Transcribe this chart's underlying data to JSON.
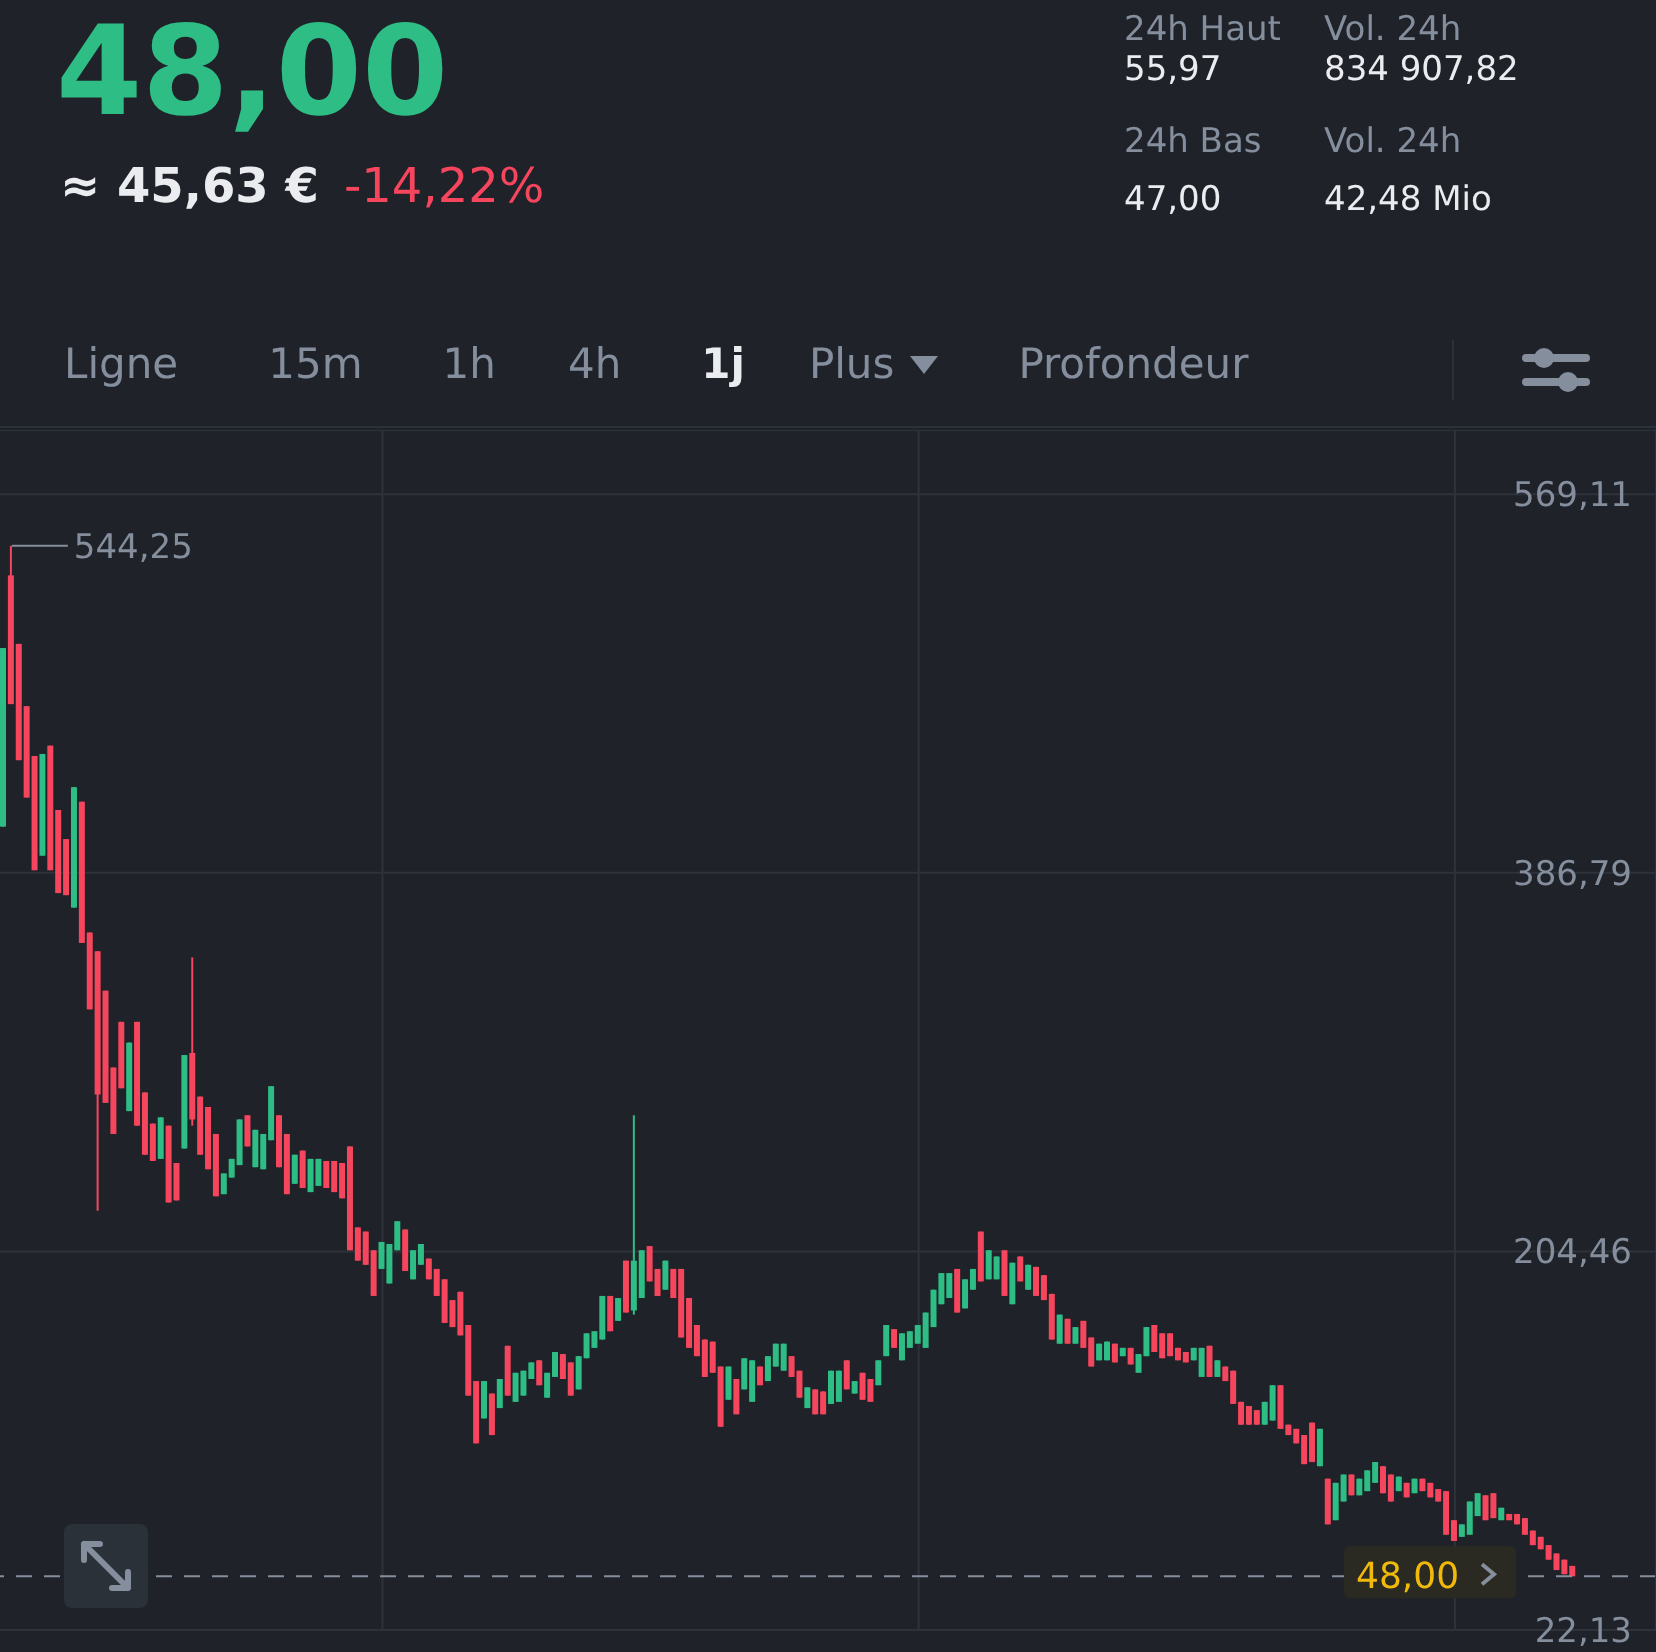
{
  "chart_data": {
    "type": "candlestick",
    "title": "48,00",
    "annotations": [
      "≈ 45,63 €",
      "-14,22%",
      "24h Haut",
      "55,97",
      "Vol. 24h",
      "834 907,82",
      "24h Bas",
      "47,00",
      "Vol. 24h",
      "42,48 Mio",
      "Ligne",
      "15m",
      "1h",
      "4h",
      "1j",
      "Plus",
      "Profondeur",
      "544,25"
    ],
    "categories": [
      null,
      null,
      null,
      null,
      null,
      null,
      null,
      null,
      null,
      null,
      null,
      null,
      null,
      null,
      null,
      null,
      null,
      null,
      null,
      null,
      null,
      null,
      null,
      null,
      null,
      null,
      null,
      null,
      null,
      null,
      null,
      null,
      null,
      null,
      null,
      null,
      null,
      null,
      null,
      null,
      null,
      null,
      null,
      null,
      null,
      null,
      null,
      null,
      null,
      null,
      null,
      null,
      null,
      null,
      null,
      null,
      null,
      null,
      null,
      null,
      null,
      null,
      null,
      null,
      null,
      null,
      null,
      null,
      null,
      null,
      null,
      null,
      null,
      null,
      null,
      null,
      null,
      null,
      null,
      null,
      null,
      null,
      null,
      null,
      null,
      null,
      null,
      null,
      null,
      null,
      null,
      null,
      null,
      null,
      null,
      null,
      null,
      null,
      null,
      null,
      null,
      null,
      null,
      null,
      null,
      null,
      null,
      null,
      null,
      null,
      null,
      null,
      null,
      null,
      null,
      null,
      null,
      null,
      null,
      null,
      null,
      null,
      null,
      null,
      null,
      null,
      null,
      null,
      null,
      null,
      null,
      null,
      null,
      null,
      null,
      null,
      null,
      null,
      null,
      null,
      null,
      null,
      null,
      null,
      null,
      null,
      null,
      null,
      null,
      null,
      null,
      null,
      null,
      null,
      null,
      null,
      null,
      null,
      null,
      null,
      null,
      null,
      null,
      null,
      null,
      null,
      null,
      null,
      null,
      null,
      null,
      null,
      null,
      null,
      null,
      null,
      null,
      null,
      null,
      null,
      null,
      null,
      null,
      null,
      null,
      null,
      null,
      null,
      null,
      null,
      null,
      null,
      null,
      null,
      null,
      null,
      null,
      null,
      null,
      null
    ],
    "ohlc": [
      [
        409,
        495,
        409,
        495
      ],
      [
        530,
        544.25,
        468,
        468
      ],
      [
        497,
        497,
        441,
        441
      ],
      [
        467,
        467,
        423,
        423
      ],
      [
        443,
        443,
        388,
        388
      ],
      [
        395,
        444,
        395,
        444
      ],
      [
        448,
        448,
        388,
        388
      ],
      [
        417,
        417,
        377,
        377
      ],
      [
        403,
        403,
        376,
        376
      ],
      [
        370,
        428,
        370,
        428
      ],
      [
        421,
        421,
        353,
        353
      ],
      [
        358,
        358,
        321,
        321
      ],
      [
        349,
        349,
        224,
        280
      ],
      [
        330,
        330,
        276,
        276
      ],
      [
        293,
        293,
        261,
        261
      ],
      [
        315,
        315,
        283,
        283
      ],
      [
        272,
        305,
        272,
        305
      ],
      [
        315,
        315,
        265,
        265
      ],
      [
        281,
        281,
        251,
        251
      ],
      [
        266,
        266,
        248,
        248
      ],
      [
        249,
        269,
        249,
        269
      ],
      [
        265,
        265,
        228,
        228
      ],
      [
        247,
        247,
        229,
        229
      ],
      [
        254,
        299,
        254,
        299
      ],
      [
        300,
        346,
        265,
        268
      ],
      [
        279,
        279,
        251,
        251
      ],
      [
        274,
        274,
        244,
        244
      ],
      [
        261,
        261,
        231,
        231
      ],
      [
        232,
        242,
        232,
        242
      ],
      [
        240,
        249,
        240,
        249
      ],
      [
        246,
        268,
        246,
        268
      ],
      [
        270,
        270,
        255,
        255
      ],
      [
        245,
        263,
        245,
        263
      ],
      [
        244,
        261,
        244,
        261
      ],
      [
        258,
        284,
        258,
        284
      ],
      [
        270,
        270,
        245,
        245
      ],
      [
        261,
        261,
        232,
        232
      ],
      [
        237,
        251,
        237,
        251
      ],
      [
        253,
        253,
        235,
        235
      ],
      [
        233,
        249,
        233,
        249
      ],
      [
        236,
        249,
        236,
        249
      ],
      [
        248,
        248,
        235,
        235
      ],
      [
        248,
        248,
        233,
        233
      ],
      [
        247,
        247,
        230,
        230
      ],
      [
        255,
        255,
        205,
        205
      ],
      [
        216,
        216,
        200,
        200
      ],
      [
        214,
        214,
        198,
        198
      ],
      [
        205,
        205,
        183,
        183
      ],
      [
        196,
        209,
        196,
        209
      ],
      [
        189,
        208,
        189,
        208
      ],
      [
        205,
        219,
        205,
        219
      ],
      [
        215,
        215,
        195,
        195
      ],
      [
        191,
        205,
        191,
        205
      ],
      [
        198,
        208,
        198,
        208
      ],
      [
        201,
        201,
        191,
        191
      ],
      [
        196,
        196,
        183,
        183
      ],
      [
        191,
        191,
        170,
        170
      ],
      [
        181,
        181,
        168,
        168
      ],
      [
        185,
        185,
        164,
        164
      ],
      [
        169,
        169,
        135,
        135
      ],
      [
        142,
        142,
        112,
        112
      ],
      [
        124,
        142,
        124,
        142
      ],
      [
        136,
        136,
        116,
        116
      ],
      [
        129,
        143,
        129,
        143
      ],
      [
        159,
        159,
        135,
        135
      ],
      [
        132,
        146,
        132,
        146
      ],
      [
        135,
        147,
        135,
        147
      ],
      [
        143,
        151,
        143,
        151
      ],
      [
        152,
        152,
        140,
        140
      ],
      [
        134,
        146,
        134,
        146
      ],
      [
        144,
        156,
        144,
        156
      ],
      [
        155,
        155,
        143,
        143
      ],
      [
        151,
        151,
        135,
        135
      ],
      [
        138,
        154,
        138,
        154
      ],
      [
        153,
        165,
        153,
        165
      ],
      [
        158,
        166,
        158,
        166
      ],
      [
        162,
        183,
        162,
        183
      ],
      [
        183,
        183,
        166,
        166
      ],
      [
        171,
        182,
        171,
        182
      ],
      [
        200,
        200,
        175,
        175
      ],
      [
        176,
        270,
        174,
        200
      ],
      [
        182,
        205,
        182,
        205
      ],
      [
        207,
        207,
        190,
        190
      ],
      [
        196,
        196,
        183,
        183
      ],
      [
        186,
        200,
        186,
        200
      ],
      [
        196,
        196,
        182,
        182
      ],
      [
        196,
        196,
        163,
        163
      ],
      [
        182,
        182,
        158,
        158
      ],
      [
        169,
        169,
        154,
        154
      ],
      [
        162,
        162,
        144,
        144
      ],
      [
        161,
        161,
        146,
        146
      ],
      [
        149,
        149,
        120,
        120
      ],
      [
        133,
        149,
        133,
        149
      ],
      [
        143,
        143,
        126,
        126
      ],
      [
        138,
        153,
        138,
        153
      ],
      [
        132,
        152,
        132,
        152
      ],
      [
        149,
        149,
        140,
        140
      ],
      [
        142,
        154,
        142,
        154
      ],
      [
        149,
        160,
        149,
        160
      ],
      [
        147,
        160,
        147,
        160
      ],
      [
        154,
        154,
        144,
        144
      ],
      [
        147,
        147,
        134,
        134
      ],
      [
        129,
        139,
        129,
        139
      ],
      [
        138,
        138,
        126,
        126
      ],
      [
        137,
        137,
        126,
        126
      ],
      [
        131,
        147,
        131,
        147
      ],
      [
        132,
        147,
        132,
        147
      ],
      [
        152,
        152,
        138,
        138
      ],
      [
        136,
        142,
        136,
        142
      ],
      [
        146,
        146,
        133,
        133
      ],
      [
        143,
        143,
        132,
        132
      ],
      [
        140,
        152,
        140,
        152
      ],
      [
        154,
        169,
        154,
        169
      ],
      [
        167,
        167,
        158,
        158
      ],
      [
        152,
        165,
        152,
        165
      ],
      [
        158,
        166,
        158,
        166
      ],
      [
        160,
        169,
        160,
        169
      ],
      [
        158,
        175,
        158,
        175
      ],
      [
        168,
        186,
        168,
        186
      ],
      [
        179,
        194,
        179,
        194
      ],
      [
        182,
        194,
        182,
        194
      ],
      [
        196,
        196,
        175,
        175
      ],
      [
        177,
        191,
        177,
        191
      ],
      [
        186,
        196,
        186,
        196
      ],
      [
        214,
        214,
        190,
        190
      ],
      [
        191,
        205,
        191,
        205
      ],
      [
        191,
        202,
        191,
        202
      ],
      [
        205,
        205,
        183,
        183
      ],
      [
        179,
        199,
        179,
        199
      ],
      [
        202,
        202,
        190,
        190
      ],
      [
        186,
        198,
        186,
        198
      ],
      [
        197,
        197,
        183,
        183
      ],
      [
        193,
        193,
        181,
        181
      ],
      [
        184,
        184,
        162,
        162
      ],
      [
        160,
        174,
        160,
        174
      ],
      [
        172,
        172,
        160,
        160
      ],
      [
        160,
        168,
        160,
        168
      ],
      [
        171,
        171,
        158,
        158
      ],
      [
        163,
        163,
        149,
        149
      ],
      [
        152,
        160,
        152,
        160
      ],
      [
        152,
        161,
        152,
        161
      ],
      [
        160,
        160,
        151,
        151
      ],
      [
        154,
        158,
        154,
        158
      ],
      [
        158,
        158,
        150,
        150
      ],
      [
        146,
        155,
        146,
        155
      ],
      [
        154,
        168,
        154,
        168
      ],
      [
        169,
        169,
        156,
        156
      ],
      [
        165,
        165,
        153,
        153
      ],
      [
        165,
        165,
        154,
        154
      ],
      [
        158,
        158,
        152,
        152
      ],
      [
        156,
        156,
        151,
        151
      ],
      [
        152,
        158,
        152,
        158
      ],
      [
        144,
        158,
        144,
        158
      ],
      [
        159,
        159,
        144,
        144
      ],
      [
        144,
        152,
        144,
        152
      ],
      [
        149,
        149,
        142,
        142
      ],
      [
        147,
        147,
        131,
        131
      ],
      [
        132,
        132,
        121,
        121
      ],
      [
        130,
        130,
        121,
        121
      ],
      [
        128,
        128,
        121,
        121
      ],
      [
        121,
        132,
        121,
        132
      ],
      [
        123,
        140,
        123,
        140
      ],
      [
        140,
        140,
        119,
        119
      ],
      [
        121,
        121,
        116,
        116
      ],
      [
        119,
        119,
        112,
        112
      ],
      [
        116,
        116,
        102,
        102
      ],
      [
        122,
        122,
        103,
        103
      ],
      [
        101,
        119,
        101,
        119
      ],
      [
        95,
        95,
        73,
        73
      ],
      [
        75,
        93,
        75,
        93
      ],
      [
        84,
        97,
        84,
        97
      ],
      [
        97,
        97,
        87,
        87
      ],
      [
        87,
        95,
        87,
        95
      ],
      [
        89,
        99,
        89,
        99
      ],
      [
        93,
        103,
        93,
        103
      ],
      [
        101,
        101,
        88,
        88
      ],
      [
        97,
        97,
        84,
        84
      ],
      [
        89,
        96,
        89,
        96
      ],
      [
        93,
        93,
        86,
        86
      ],
      [
        88,
        95,
        88,
        95
      ],
      [
        95,
        95,
        89,
        89
      ],
      [
        93,
        93,
        86,
        86
      ],
      [
        90,
        90,
        84,
        84
      ],
      [
        89,
        89,
        68,
        68
      ],
      [
        75,
        75,
        65,
        65
      ],
      [
        67,
        73,
        67,
        73
      ],
      [
        68,
        84,
        68,
        84
      ],
      [
        77,
        88,
        77,
        88
      ],
      [
        87,
        87,
        75,
        75
      ],
      [
        88,
        88,
        76,
        76
      ],
      [
        75,
        81,
        75,
        81
      ],
      [
        78,
        78,
        75,
        75
      ],
      [
        78,
        78,
        73,
        73
      ],
      [
        76,
        76,
        68,
        68
      ],
      [
        70,
        70,
        63,
        63
      ],
      [
        67,
        67,
        61,
        61
      ],
      [
        63,
        63,
        56,
        56
      ],
      [
        59,
        59,
        51,
        51
      ],
      [
        56,
        56,
        49,
        49
      ],
      [
        53,
        53,
        48,
        48
      ]
    ],
    "ylim": [
      22.13,
      600
    ],
    "yticks": [
      {
        "value": 569.11,
        "label": "569,11"
      },
      {
        "value": 386.79,
        "label": "386,79"
      },
      {
        "value": 204.46,
        "label": "204,46"
      },
      {
        "value": 22.13,
        "label": "22,13"
      }
    ],
    "tick_labels": "y",
    "grid": true,
    "ref_lines": [
      {
        "axis": "y",
        "value": 48,
        "label": "48,00",
        "color": "#848e9c",
        "line_style": "dashed"
      }
    ]
  }
}
